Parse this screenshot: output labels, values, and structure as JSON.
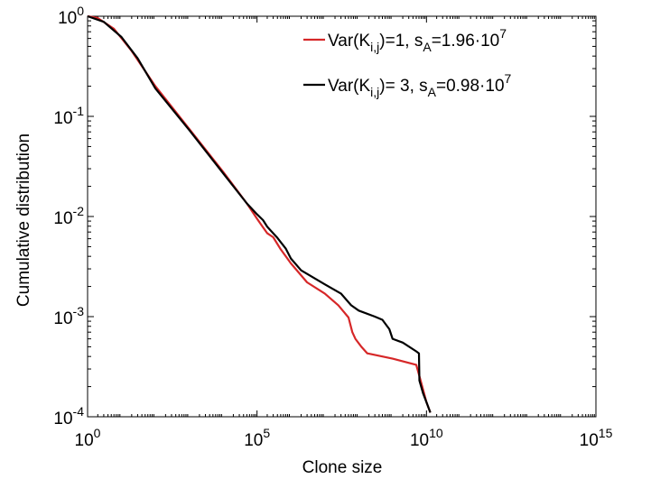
{
  "chart_data": {
    "type": "line",
    "xlabel": "Clone size",
    "ylabel": "Cumulative distribution",
    "x_scale": "log",
    "y_scale": "log",
    "xlim": [
      1,
      1000000000000000.0
    ],
    "ylim": [
      0.0001,
      1
    ],
    "x_ticks": [
      {
        "value": 1,
        "base": "10",
        "exp": "0"
      },
      {
        "value": 100000,
        "base": "10",
        "exp": "5"
      },
      {
        "value": 10000000000,
        "base": "10",
        "exp": "10"
      },
      {
        "value": 1000000000000000,
        "base": "10",
        "exp": "15"
      }
    ],
    "y_ticks": [
      {
        "value": 1,
        "base": "10",
        "exp": "0"
      },
      {
        "value": 0.1,
        "base": "10",
        "exp": "-1"
      },
      {
        "value": 0.01,
        "base": "10",
        "exp": "-2"
      },
      {
        "value": 0.001,
        "base": "10",
        "exp": "-3"
      },
      {
        "value": 0.0001,
        "base": "10",
        "exp": "-4"
      }
    ],
    "grid": false,
    "legend_position": "top-right",
    "series": [
      {
        "legend": {
          "pre": "Var(K",
          "sub1": "i,j",
          "mid": ")=1,  s",
          "sub2": "A",
          "post": "=1.96·10",
          "sup": "7"
        },
        "color": "#d62728",
        "points": [
          [
            1,
            1
          ],
          [
            2,
            0.96
          ],
          [
            6,
            0.75
          ],
          [
            20,
            0.45
          ],
          [
            100,
            0.2
          ],
          [
            1000,
            0.075
          ],
          [
            10000,
            0.028
          ],
          [
            50000,
            0.0135
          ],
          [
            100000,
            0.0095
          ],
          [
            150000,
            0.0078
          ],
          [
            200000,
            0.0068
          ],
          [
            300000,
            0.0062
          ],
          [
            500000,
            0.0047
          ],
          [
            1000000,
            0.0034
          ],
          [
            3000000,
            0.0022
          ],
          [
            10000000,
            0.0017
          ],
          [
            25000000,
            0.0013
          ],
          [
            50000000,
            0.00098
          ],
          [
            65000000,
            0.0007
          ],
          [
            80000000,
            0.0006
          ],
          [
            120000000,
            0.0005
          ],
          [
            180000000,
            0.00043
          ],
          [
            1000000000,
            0.00038
          ],
          [
            5000000000,
            0.00033
          ],
          [
            6500000000,
            0.00024
          ],
          [
            10000000000,
            0.00014
          ],
          [
            13000000000,
            0.00011
          ]
        ]
      },
      {
        "legend": {
          "pre": "Var(K",
          "sub1": "i,j",
          "mid": ")= 3, s",
          "sub2": "A",
          "post": "=0.98·10",
          "sup": "7"
        },
        "color": "#000000",
        "points": [
          [
            1,
            1
          ],
          [
            3,
            0.88
          ],
          [
            10,
            0.62
          ],
          [
            30,
            0.38
          ],
          [
            100,
            0.19
          ],
          [
            1000,
            0.073
          ],
          [
            10000,
            0.027
          ],
          [
            50000,
            0.0135
          ],
          [
            100000,
            0.0105
          ],
          [
            150000,
            0.0092
          ],
          [
            200000,
            0.0079
          ],
          [
            400000,
            0.0061
          ],
          [
            700000,
            0.0048
          ],
          [
            1000000,
            0.0038
          ],
          [
            2000000,
            0.0029
          ],
          [
            10000000,
            0.0021
          ],
          [
            30000000,
            0.0017
          ],
          [
            60000000,
            0.0013
          ],
          [
            100000000,
            0.00115
          ],
          [
            300000000,
            0.001
          ],
          [
            500000000,
            0.00093
          ],
          [
            800000000,
            0.00075
          ],
          [
            1000000000,
            0.0006
          ],
          [
            2000000000,
            0.00055
          ],
          [
            5000000000,
            0.00045
          ],
          [
            6000000000,
            0.00043
          ],
          [
            6200000000,
            0.00023
          ],
          [
            8000000000,
            0.00017
          ],
          [
            10000000000,
            0.00014
          ],
          [
            13000000000,
            0.00011
          ]
        ]
      }
    ]
  }
}
